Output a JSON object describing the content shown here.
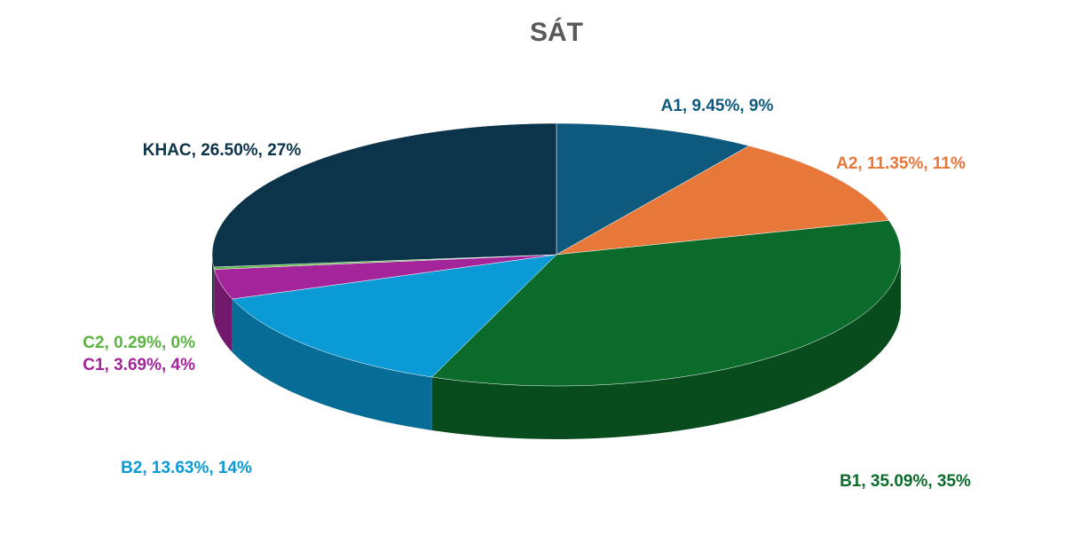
{
  "chart_data": {
    "type": "pie3d",
    "title": "SÁT",
    "categories": [
      "A1",
      "A2",
      "B1",
      "B2",
      "C1",
      "C2",
      "KHAC"
    ],
    "values": [
      9.45,
      11.35,
      35.09,
      13.63,
      3.69,
      0.29,
      26.5
    ],
    "value_labels": [
      "A1, 9.45%, 9%",
      "A2, 11.35%, 11%",
      "B1, 35.09%, 35%",
      "B2, 13.63%, 14%",
      "C1, 3.69%, 4%",
      "C2, 0.29%, 0%",
      "KHAC, 26.50%, 27%"
    ],
    "colors": [
      "#0e5a7e",
      "#e8773a",
      "#0b6b2a",
      "#0a9ad6",
      "#a4249a",
      "#5bb440",
      "#0b3349"
    ]
  }
}
